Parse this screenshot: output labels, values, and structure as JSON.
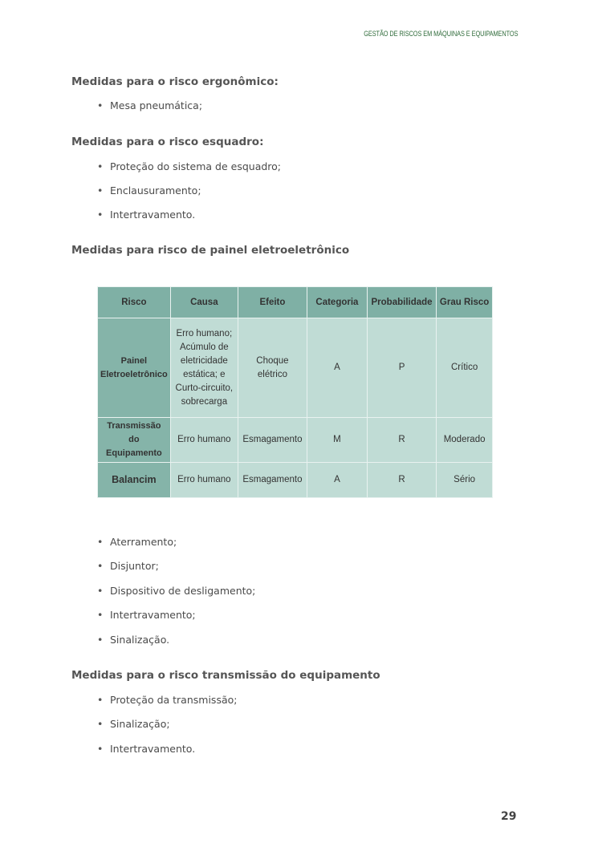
{
  "running_header": "GESTÃO DE RISCOS EM MÁQUINAS E EQUIPAMENTOS",
  "sections": [
    {
      "heading": "Medidas para o risco ergonômico:",
      "items": [
        "Mesa pneumática;"
      ]
    },
    {
      "heading": "Medidas para o risco esquadro:",
      "items": [
        "Proteção do sistema de esquadro;",
        "Enclausuramento;",
        "Intertravamento."
      ]
    },
    {
      "heading": "Medidas para risco de painel eletroeletrônico",
      "items": [
        "Aterramento;",
        "Disjuntor;",
        "Dispositivo de desligamento;",
        "Intertravamento;",
        "Sinalização."
      ]
    },
    {
      "heading": "Medidas para o risco transmissão do equipamento",
      "items": [
        "Proteção da transmissão;",
        "Sinalização;",
        "Intertravamento."
      ]
    }
  ],
  "table": {
    "headers": [
      "Risco",
      "Causa",
      "Efeito",
      "Categoria",
      "Probabilidade",
      "Grau Risco"
    ],
    "rows": [
      [
        "Painel Eletroeletrônico",
        "Erro humano; Acúmulo de eletricidade estática; e Curto-circuito, sobrecarga",
        "Choque elétrico",
        "A",
        "P",
        "Crítico"
      ],
      [
        "Transmissão do Equipamento",
        "Erro humano",
        "Esmagamento",
        "M",
        "R",
        "Moderado"
      ],
      [
        "Balancim",
        "Erro humano",
        "Esmagamento",
        "A",
        "R",
        "Sério"
      ]
    ]
  },
  "page_number": "29"
}
